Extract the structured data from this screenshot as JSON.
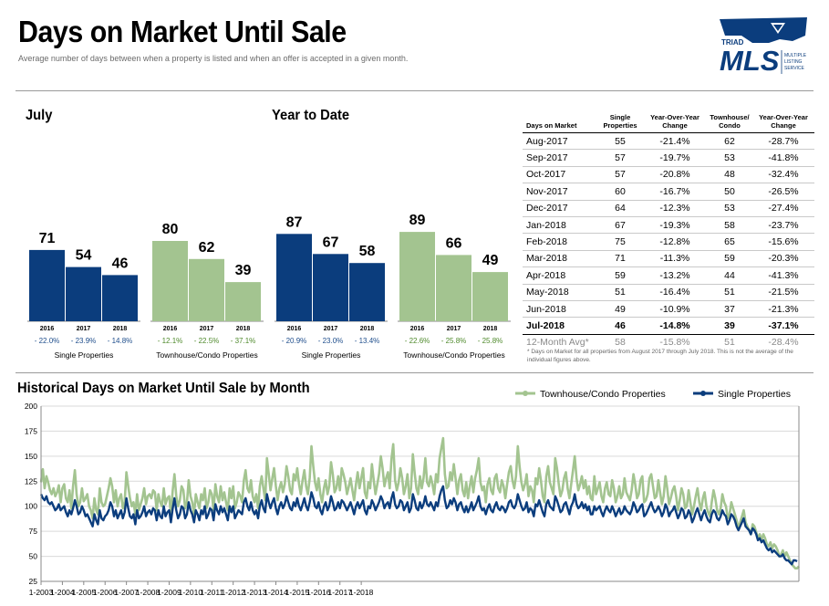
{
  "header": {
    "title": "Days on Market Until Sale",
    "subtitle": "Average number of days between when a property is listed and when an offer is accepted in a given month."
  },
  "logo": {
    "top_text": "TRIAD",
    "main_text": "MLS",
    "side_lines": [
      "MULTIPLE",
      "LISTING",
      "SERVICE"
    ],
    "color": "#0b3d7d"
  },
  "sections": {
    "july": "July",
    "ytd": "Year to Date"
  },
  "colors": {
    "single": "#0b3d7d",
    "townhouse": "#a3c490",
    "positive_pct": "#1f4e8c",
    "negative_pct": "#4f8a2c"
  },
  "table": {
    "headers": [
      "Days on Market",
      "Single Properties",
      "Year-Over-Year Change",
      "Townhouse/ Condo",
      "Year-Over-Year Change"
    ],
    "rows": [
      [
        "Aug-2017",
        "55",
        "-21.4%",
        "62",
        "-28.7%"
      ],
      [
        "Sep-2017",
        "57",
        "-19.7%",
        "53",
        "-41.8%"
      ],
      [
        "Oct-2017",
        "57",
        "-20.8%",
        "48",
        "-32.4%"
      ],
      [
        "Nov-2017",
        "60",
        "-16.7%",
        "50",
        "-26.5%"
      ],
      [
        "Dec-2017",
        "64",
        "-12.3%",
        "53",
        "-27.4%"
      ],
      [
        "Jan-2018",
        "67",
        "-19.3%",
        "58",
        "-23.7%"
      ],
      [
        "Feb-2018",
        "75",
        "-12.8%",
        "65",
        "-15.6%"
      ],
      [
        "Mar-2018",
        "71",
        "-11.3%",
        "59",
        "-20.3%"
      ],
      [
        "Apr-2018",
        "59",
        "-13.2%",
        "44",
        "-41.3%"
      ],
      [
        "May-2018",
        "51",
        "-16.4%",
        "51",
        "-21.5%"
      ],
      [
        "Jun-2018",
        "49",
        "-10.9%",
        "37",
        "-21.3%"
      ]
    ],
    "current": [
      "Jul-2018",
      "46",
      "-14.8%",
      "39",
      "-37.1%"
    ],
    "average": [
      "12-Month Avg*",
      "58",
      "-15.8%",
      "51",
      "-28.4%"
    ],
    "footnote": "* Days on Market for all properties from August 2017 through July 2018. This is not the average of the individual figures above."
  },
  "chart_data": [
    {
      "type": "bar",
      "title": "July",
      "groups": [
        {
          "label": "Single Properties",
          "categories": [
            "2016",
            "2017",
            "2018"
          ],
          "values": [
            71,
            54,
            46
          ],
          "changes": [
            "- 22.0%",
            "- 23.9%",
            "- 14.8%"
          ],
          "color": "#0b3d7d"
        },
        {
          "label": "Townhouse/Condo Properties",
          "categories": [
            "2016",
            "2017",
            "2018"
          ],
          "values": [
            80,
            62,
            39
          ],
          "changes": [
            "- 12.1%",
            "- 22.5%",
            "- 37.1%"
          ],
          "color": "#a3c490"
        }
      ]
    },
    {
      "type": "bar",
      "title": "Year to Date",
      "groups": [
        {
          "label": "Single Properties",
          "categories": [
            "2016",
            "2017",
            "2018"
          ],
          "values": [
            87,
            67,
            58
          ],
          "changes": [
            "- 20.9%",
            "- 23.0%",
            "- 13.4%"
          ],
          "color": "#0b3d7d"
        },
        {
          "label": "Townhouse/Condo Properties",
          "categories": [
            "2016",
            "2017",
            "2018"
          ],
          "values": [
            89,
            66,
            49
          ],
          "changes": [
            "- 22.6%",
            "- 25.8%",
            "- 25.8%"
          ],
          "color": "#a3c490"
        }
      ]
    },
    {
      "type": "line",
      "title": "Historical Days on Market Until Sale by Month",
      "ylim": [
        25,
        200
      ],
      "yticks": [
        25,
        50,
        75,
        100,
        125,
        150,
        175,
        200
      ],
      "xticks": [
        "1-2003",
        "1-2004",
        "1-2005",
        "1-2006",
        "1-2007",
        "1-2008",
        "1-2009",
        "1-2010",
        "1-2011",
        "1-2012",
        "1-2013",
        "1-2014",
        "1-2015",
        "1-2016",
        "1-2017",
        "1-2018"
      ],
      "x_start": "1-2003",
      "x_end": "7-2018",
      "legend_position": "top-right",
      "grid": true,
      "series": [
        {
          "name": "Townhouse/Condo Properties",
          "color": "#a3c490",
          "values": [
            124,
            137,
            118,
            130,
            124,
            116,
            112,
            118,
            110,
            114,
            121,
            104,
            118,
            122,
            108,
            104,
            116,
            98,
            120,
            136,
            112,
            100,
            104,
            118,
            105,
            108,
            112,
            100,
            96,
            88,
            108,
            96,
            92,
            118,
            104,
            100,
            102,
            110,
            118,
            128,
            120,
            104,
            116,
            100,
            108,
            112,
            98,
            104,
            134,
            120,
            108,
            100,
            104,
            92,
            112,
            96,
            102,
            108,
            118,
            102,
            110,
            112,
            108,
            116,
            114,
            96,
            112,
            104,
            100,
            118,
            102,
            108,
            110,
            92,
            116,
            132,
            110,
            100,
            106,
            120,
            116,
            98,
            104,
            126,
            110,
            104,
            92,
            112,
            104,
            98,
            112,
            106,
            118,
            98,
            104,
            116,
            112,
            96,
            122,
            110,
            104,
            120,
            106,
            114,
            104,
            96,
            118,
            108,
            120,
            98,
            104,
            114,
            110,
            104,
            126,
            136,
            118,
            114,
            126,
            110,
            104,
            112,
            98,
            120,
            130,
            118,
            106,
            148,
            132,
            116,
            128,
            138,
            120,
            106,
            118,
            124,
            114,
            122,
            140,
            130,
            116,
            112,
            132,
            126,
            138,
            122,
            112,
            126,
            136,
            120,
            112,
            128,
            160,
            140,
            124,
            116,
            128,
            112,
            104,
            118,
            126,
            112,
            120,
            144,
            132,
            114,
            118,
            130,
            116,
            138,
            132,
            124,
            112,
            120,
            128,
            116,
            106,
            122,
            134,
            118,
            128,
            138,
            114,
            108,
            124,
            118,
            142,
            126,
            112,
            122,
            132,
            150,
            138,
            120,
            128,
            134,
            118,
            148,
            162,
            126,
            116,
            124,
            138,
            128,
            112,
            120,
            132,
            108,
            118,
            152,
            134,
            118,
            112,
            130,
            118,
            128,
            148,
            124,
            120,
            130,
            122,
            112,
            132,
            124,
            148,
            158,
            168,
            132,
            118,
            120,
            134,
            126,
            142,
            128,
            112,
            126,
            132,
            116,
            110,
            124,
            108,
            120,
            130,
            114,
            128,
            136,
            148,
            124,
            116,
            120,
            104,
            122,
            128,
            116,
            112,
            128,
            132,
            118,
            114,
            126,
            120,
            108,
            122,
            134,
            140,
            126,
            118,
            130,
            160,
            140,
            124,
            116,
            122,
            132,
            110,
            120,
            116,
            104,
            128,
            122,
            138,
            126,
            110,
            104,
            130,
            140,
            124,
            118,
            112,
            148,
            138,
            122,
            110,
            116,
            128,
            134,
            118,
            108,
            122,
            136,
            150,
            128,
            116,
            122,
            130,
            118,
            126,
            112,
            120,
            108,
            106,
            130,
            112,
            118,
            124,
            110,
            104,
            118,
            124,
            112,
            110,
            126,
            118,
            104,
            110,
            120,
            108,
            112,
            128,
            114,
            110,
            106,
            116,
            132,
            122,
            108,
            112,
            126,
            130,
            104,
            106,
            112,
            128,
            132,
            120,
            108,
            110,
            126,
            114,
            102,
            110,
            130,
            118,
            102,
            108,
            116,
            120,
            110,
            96,
            106,
            118,
            112,
            98,
            100,
            116,
            104,
            92,
            100,
            110,
            118,
            104,
            96,
            108,
            114,
            100,
            94,
            90,
            104,
            116,
            108,
            96,
            92,
            98,
            112,
            104,
            100,
            88,
            92,
            104,
            98,
            92,
            86,
            78,
            84,
            90,
            96,
            84,
            80,
            76,
            72,
            82,
            80,
            74,
            68,
            72,
            66,
            72,
            68,
            62,
            60,
            64,
            58,
            62,
            60,
            56,
            50,
            52,
            56,
            50,
            54,
            50,
            46,
            42,
            40,
            38,
            38,
            40
          ]
        },
        {
          "name": "Single Properties",
          "color": "#0b3d7d",
          "values": [
            112,
            108,
            106,
            110,
            104,
            102,
            104,
            100,
            96,
            98,
            102,
            96,
            98,
            100,
            94,
            90,
            96,
            92,
            98,
            106,
            100,
            92,
            94,
            100,
            96,
            90,
            92,
            88,
            84,
            80,
            92,
            86,
            82,
            96,
            88,
            86,
            90,
            92,
            96,
            104,
            100,
            90,
            96,
            88,
            92,
            96,
            88,
            94,
            108,
            98,
            90,
            88,
            92,
            82,
            96,
            88,
            90,
            94,
            100,
            90,
            94,
            96,
            92,
            98,
            96,
            86,
            96,
            90,
            88,
            100,
            90,
            94,
            96,
            84,
            98,
            108,
            96,
            88,
            92,
            100,
            98,
            88,
            92,
            104,
            96,
            92,
            84,
            96,
            92,
            86,
            96,
            92,
            100,
            88,
            92,
            98,
            96,
            86,
            102,
            96,
            92,
            100,
            94,
            98,
            92,
            86,
            100,
            94,
            100,
            88,
            92,
            96,
            94,
            92,
            104,
            108,
            100,
            96,
            104,
            96,
            92,
            96,
            88,
            100,
            106,
            98,
            94,
            112,
            104,
            98,
            104,
            108,
            98,
            92,
            100,
            104,
            98,
            102,
            110,
            104,
            98,
            96,
            104,
            100,
            108,
            100,
            96,
            102,
            108,
            100,
            96,
            104,
            114,
            108,
            100,
            98,
            104,
            96,
            92,
            100,
            104,
            96,
            100,
            110,
            104,
            96,
            98,
            104,
            98,
            106,
            104,
            100,
            96,
            100,
            104,
            98,
            92,
            100,
            104,
            98,
            102,
            106,
            96,
            92,
            100,
            98,
            106,
            102,
            96,
            100,
            104,
            110,
            106,
            98,
            102,
            104,
            98,
            108,
            114,
            102,
            98,
            100,
            106,
            104,
            96,
            100,
            104,
            94,
            98,
            112,
            106,
            98,
            96,
            104,
            98,
            102,
            110,
            102,
            100,
            104,
            100,
            96,
            104,
            100,
            110,
            116,
            120,
            106,
            98,
            100,
            106,
            102,
            108,
            104,
            96,
            102,
            104,
            98,
            94,
            100,
            94,
            98,
            104,
            96,
            100,
            104,
            110,
            100,
            96,
            98,
            92,
            98,
            102,
            96,
            94,
            100,
            104,
            98,
            96,
            100,
            98,
            94,
            98,
            104,
            106,
            100,
            98,
            102,
            112,
            106,
            100,
            96,
            98,
            104,
            94,
            98,
            96,
            90,
            102,
            100,
            106,
            100,
            94,
            90,
            102,
            106,
            100,
            98,
            96,
            110,
            106,
            100,
            94,
            96,
            102,
            104,
            98,
            92,
            100,
            104,
            112,
            102,
            98,
            100,
            104,
            98,
            102,
            96,
            100,
            92,
            92,
            100,
            96,
            98,
            100,
            94,
            90,
            96,
            100,
            96,
            94,
            100,
            96,
            90,
            94,
            98,
            92,
            94,
            100,
            96,
            94,
            92,
            96,
            104,
            100,
            94,
            96,
            100,
            102,
            90,
            92,
            96,
            100,
            104,
            98,
            94,
            96,
            100,
            96,
            90,
            94,
            102,
            98,
            90,
            94,
            96,
            100,
            94,
            88,
            92,
            98,
            96,
            88,
            90,
            96,
            92,
            84,
            88,
            94,
            98,
            92,
            86,
            92,
            96,
            90,
            86,
            84,
            92,
            96,
            94,
            88,
            86,
            90,
            96,
            92,
            90,
            82,
            86,
            92,
            90,
            86,
            80,
            76,
            80,
            84,
            88,
            80,
            78,
            76,
            72,
            78,
            76,
            72,
            66,
            68,
            64,
            66,
            62,
            58,
            56,
            58,
            54,
            56,
            54,
            52,
            50,
            50,
            52,
            48,
            46,
            46,
            44,
            42,
            46,
            46,
            45
          ]
        }
      ]
    }
  ]
}
